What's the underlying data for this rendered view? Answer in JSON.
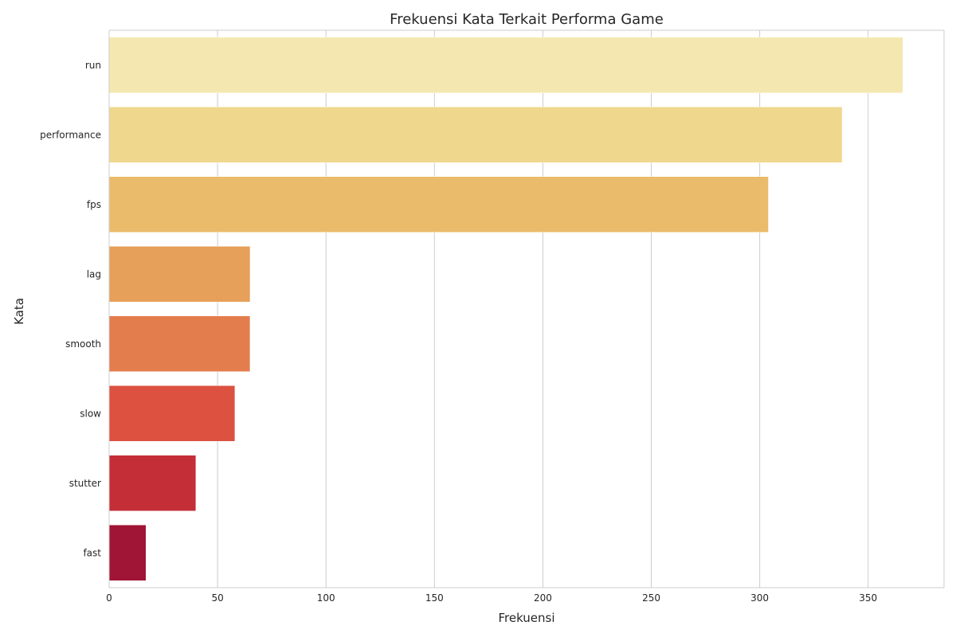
{
  "chart_data": {
    "type": "bar",
    "orientation": "horizontal",
    "title": "Frekuensi Kata Terkait Performa Game",
    "xlabel": "Frekuensi",
    "ylabel": "Kata",
    "categories": [
      "run",
      "performance",
      "fps",
      "lag",
      "smooth",
      "slow",
      "stutter",
      "fast"
    ],
    "values": [
      366,
      338,
      304,
      65,
      65,
      58,
      40,
      17
    ],
    "colors": [
      "#f4e8b0",
      "#efd78e",
      "#eabb6a",
      "#e6a05a",
      "#e37d4e",
      "#dc5140",
      "#c42e37",
      "#a01535"
    ],
    "xlim": [
      0,
      385
    ],
    "xticks": [
      0,
      50,
      100,
      150,
      200,
      250,
      300,
      350
    ],
    "grid": true,
    "grid_axis": "x",
    "legend": "none"
  }
}
